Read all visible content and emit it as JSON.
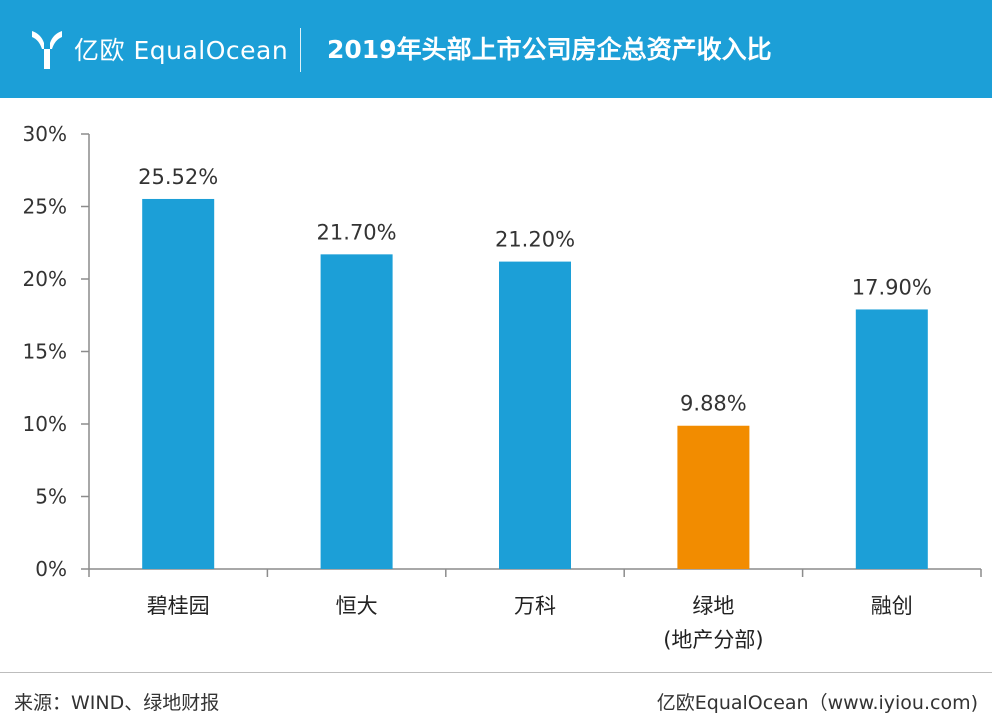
{
  "header": {
    "brand_cn": "亿欧",
    "brand_en": "EqualOcean",
    "title": "2019年头部上市公司房企总资产收入比"
  },
  "chart_data": {
    "type": "bar",
    "categories": [
      "碧桂园",
      "恒大",
      "万科",
      "绿地\n(地产分部)",
      "融创"
    ],
    "values": [
      25.52,
      21.7,
      21.2,
      9.88,
      17.9
    ],
    "data_labels": [
      "25.52%",
      "21.70%",
      "21.20%",
      "9.88%",
      "17.90%"
    ],
    "yticks": [
      "0%",
      "5%",
      "10%",
      "15%",
      "20%",
      "25%",
      "30%"
    ],
    "ylim": [
      0,
      30
    ],
    "xlabel": "",
    "ylabel": "",
    "grid": false,
    "colors": {
      "default": "#1c9fd7",
      "highlight": "#f28c00",
      "highlight_index": 3
    }
  },
  "footer": {
    "source": "来源：WIND、绿地财报",
    "credit": "亿欧EqualOcean（www.iyiou.com)"
  }
}
